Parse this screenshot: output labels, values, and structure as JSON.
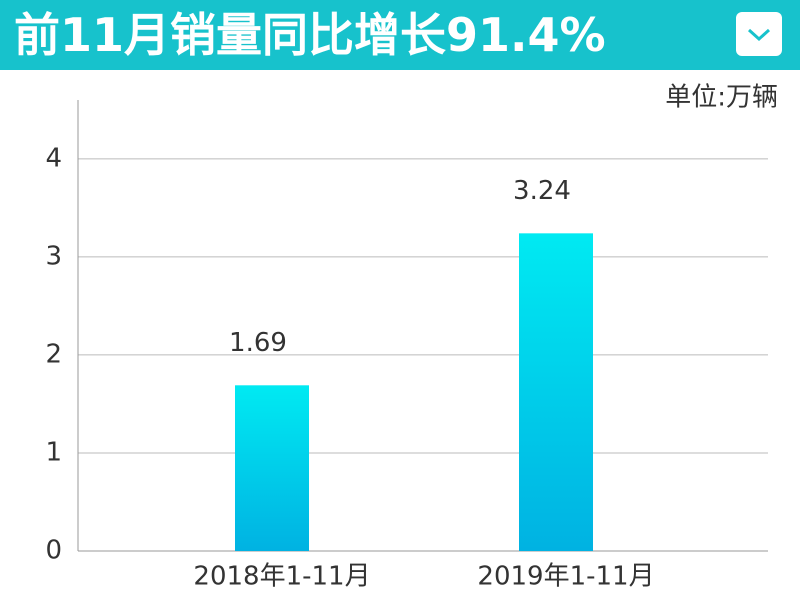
{
  "chart_data": {
    "type": "bar",
    "title": "前11月销量同比增长91.4%",
    "unit": "单位:万辆",
    "categories": [
      "2018年1-11月",
      "2019年1-11月"
    ],
    "values": [
      1.69,
      3.24
    ],
    "color": [
      "#00eaf2",
      "#00b2e2"
    ],
    "ylim": [
      0,
      4.6
    ],
    "yticks": [
      0,
      1,
      2,
      3,
      4
    ],
    "grid": true
  }
}
